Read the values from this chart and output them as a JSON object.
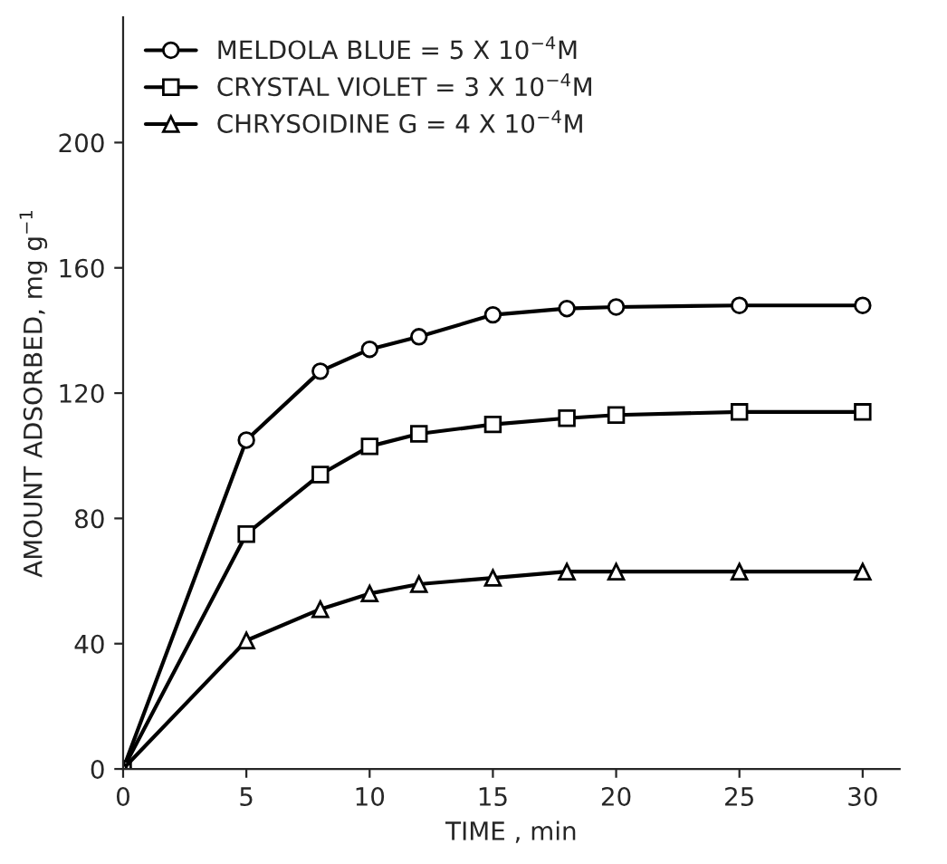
{
  "chart_data": {
    "type": "line",
    "xlabel": "TIME , min",
    "ylabel": "AMOUNT ADSORBED, mg g$^{−1}$",
    "x": [
      0,
      5,
      8,
      10,
      12,
      15,
      18,
      20,
      25,
      30
    ],
    "series": [
      {
        "name": "MELDOLA BLUE = 5 X 10$^{−4}$M",
        "color": "#000000",
        "marker": "circle",
        "values": [
          0,
          105,
          127,
          134,
          138,
          145,
          147,
          147.5,
          148,
          148
        ]
      },
      {
        "name": "CRYSTAL VIOLET = 3 X 10$^{−4}$M",
        "color": "#000000",
        "marker": "square",
        "values": [
          0,
          75,
          94,
          103,
          107,
          110,
          112,
          113,
          114,
          114
        ]
      },
      {
        "name": "CHRYSOIDINE G = 4 X 10$^{−4}$M",
        "color": "#000000",
        "marker": "triangle",
        "values": [
          0,
          41,
          51,
          56,
          59,
          61,
          63,
          63,
          63,
          63
        ]
      }
    ],
    "xlim": [
      0,
      31.5
    ],
    "xticks": [
      0,
      5,
      10,
      15,
      20,
      25,
      30
    ],
    "ylim": [
      0,
      240
    ],
    "yticks": [
      0,
      40,
      80,
      120,
      160,
      200
    ],
    "grid": false,
    "legend": "top left",
    "line_style": "solid"
  }
}
